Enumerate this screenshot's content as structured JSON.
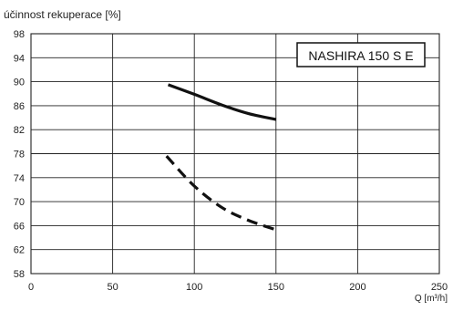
{
  "chart_data": {
    "type": "line",
    "title": "",
    "ylabel": "účinnost rekuperace [%]",
    "xlabel": "Q [m³/h]",
    "xlim": [
      0,
      250
    ],
    "ylim": [
      58,
      98
    ],
    "x_ticks": [
      0,
      50,
      100,
      150,
      200,
      250
    ],
    "y_ticks": [
      58,
      62,
      66,
      70,
      74,
      78,
      82,
      86,
      90,
      94,
      98
    ],
    "grid": true,
    "annotations": [
      {
        "text": "NASHIRA 150 S E",
        "placement": "top-right",
        "boxed": true
      }
    ],
    "series": [
      {
        "style": "solid",
        "color": "#111111",
        "x": [
          84,
          100,
          117,
          133,
          150
        ],
        "y": [
          89.5,
          87.9,
          86.1,
          84.7,
          83.7
        ]
      },
      {
        "style": "dashed",
        "color": "#111111",
        "x": [
          83,
          100,
          117,
          133,
          150
        ],
        "y": [
          77.6,
          72.6,
          69.0,
          66.9,
          65.3
        ]
      }
    ]
  }
}
